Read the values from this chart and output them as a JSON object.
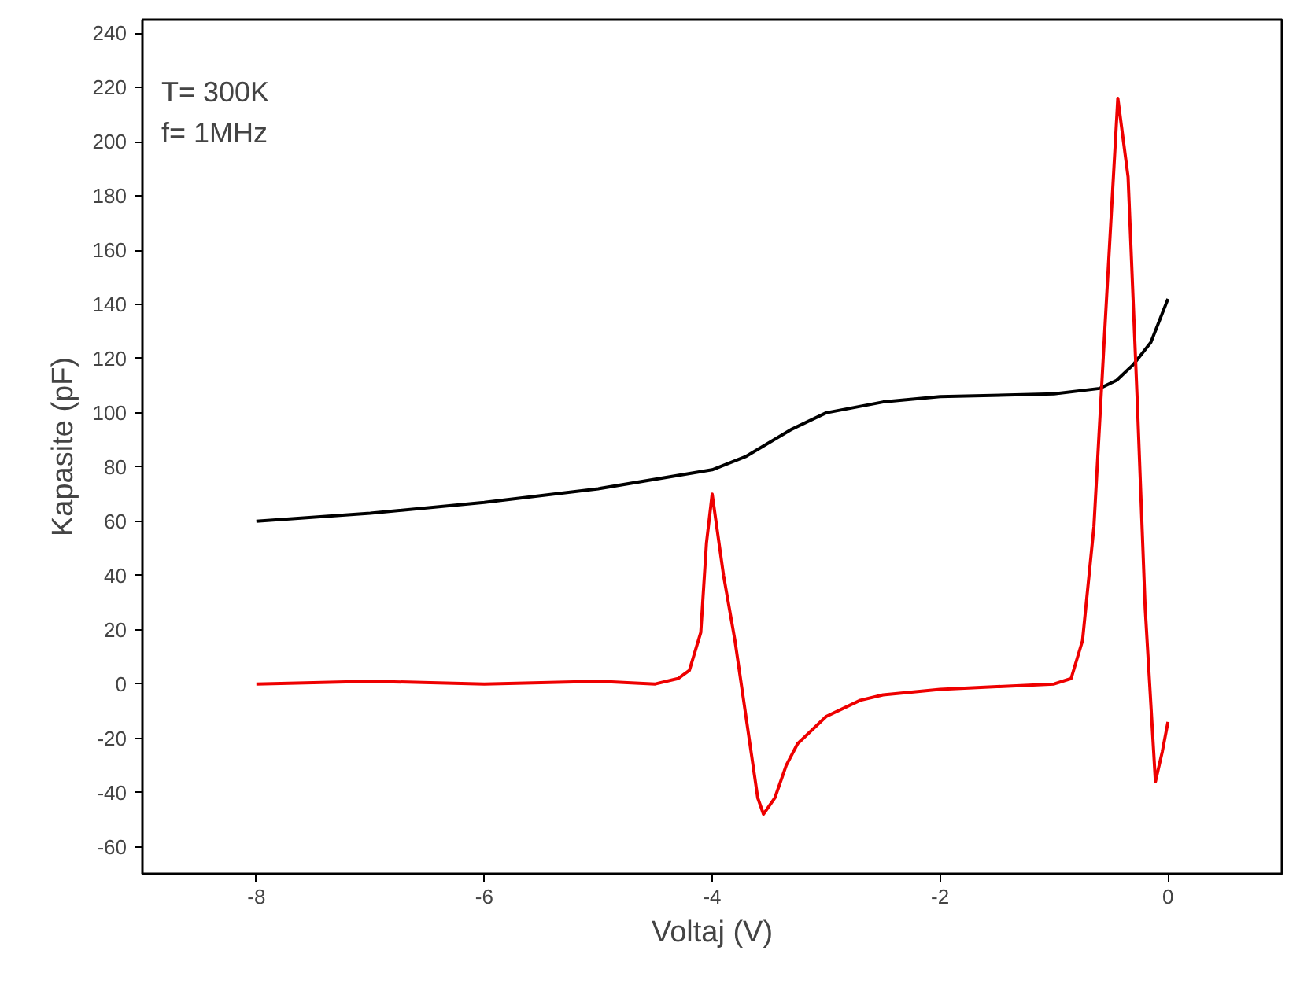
{
  "chart_data": {
    "type": "line",
    "xlabel": "Voltaj (V)",
    "ylabel": "Kapasite (pF)",
    "annotations": [
      "T= 300K",
      "f= 1MHz"
    ],
    "xlim": [
      -9,
      1
    ],
    "xticks": [
      -8,
      -6,
      -4,
      -2,
      0
    ],
    "ylim": [
      -70,
      245
    ],
    "yticks": [
      -60,
      -40,
      -20,
      0,
      20,
      40,
      60,
      80,
      100,
      120,
      140,
      160,
      180,
      200,
      220,
      240
    ],
    "grid": false,
    "marker": "none",
    "line_style": "solid",
    "series": [
      {
        "color": "#000000",
        "x": [
          -8,
          -7,
          -6,
          -5,
          -4,
          -3.7,
          -3.3,
          -3,
          -2.5,
          -2,
          -1,
          -0.6,
          -0.45,
          -0.3,
          -0.15,
          0
        ],
        "values": [
          60,
          63,
          67,
          72,
          79,
          84,
          94,
          100,
          104,
          106,
          107,
          109,
          112,
          118,
          126,
          142
        ]
      },
      {
        "color": "#ee0000",
        "x": [
          -8,
          -7,
          -6,
          -5,
          -4.5,
          -4.3,
          -4.2,
          -4.1,
          -4.05,
          -4,
          -3.9,
          -3.8,
          -3.7,
          -3.6,
          -3.55,
          -3.45,
          -3.35,
          -3.25,
          -3,
          -2.7,
          -2.5,
          -2,
          -1.5,
          -1,
          -0.85,
          -0.75,
          -0.65,
          -0.55,
          -0.44,
          -0.35,
          -0.27,
          -0.2,
          -0.11,
          -0.05,
          0
        ],
        "values": [
          0,
          1,
          0,
          1,
          0,
          2,
          5,
          19,
          52,
          70,
          40,
          16,
          -13,
          -42,
          -48,
          -42,
          -30,
          -22,
          -12,
          -6,
          -4,
          -2,
          -1,
          0,
          2,
          16,
          58,
          134,
          216,
          187,
          105,
          28,
          -36,
          -25,
          -14
        ]
      }
    ]
  }
}
